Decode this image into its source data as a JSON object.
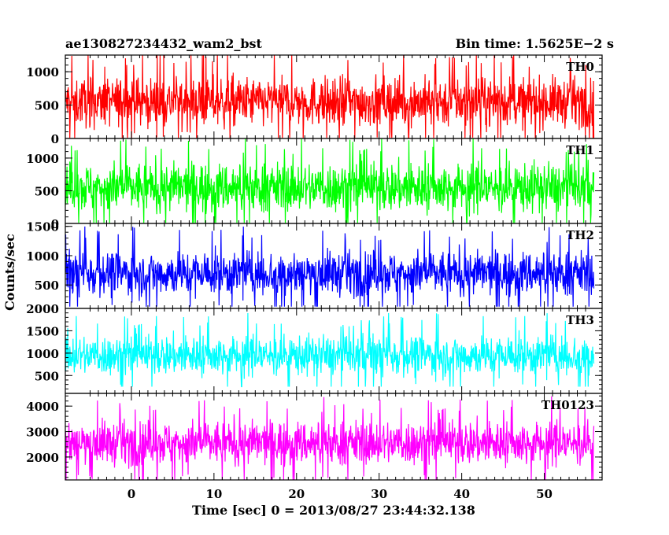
{
  "chart_data": {
    "type": "line",
    "title": "ae130827234432_wam2_bst",
    "subtitle": "Bin time: 1.5625E−2 s",
    "xlabel": "Time [sec] 0 = 2013/08/27 23:44:32.138",
    "ylabel": "Counts/sec",
    "xlim": [
      -8,
      57
    ],
    "data_xrange": [
      -8,
      56
    ],
    "x_ticks": [
      0,
      10,
      20,
      30,
      40,
      50
    ],
    "grid": false,
    "series": [
      {
        "name": "TH0",
        "color": "#ff0000",
        "ylim": [
          0,
          1250
        ],
        "y_ticks": [
          0,
          500,
          1000
        ],
        "baseline": 550,
        "noise": 260,
        "min": 10,
        "max": 1250
      },
      {
        "name": "TH1",
        "color": "#00ff00",
        "ylim": [
          0,
          1300
        ],
        "y_ticks": [
          0,
          500,
          1000
        ],
        "baseline": 550,
        "noise": 270,
        "min": 10,
        "max": 1300
      },
      {
        "name": "TH2",
        "color": "#0000ff",
        "ylim": [
          100,
          1550
        ],
        "y_ticks": [
          500,
          1000,
          1500
        ],
        "baseline": 700,
        "noise": 270,
        "min": 130,
        "max": 1550
      },
      {
        "name": "TH3",
        "color": "#00ffff",
        "ylim": [
          100,
          2000
        ],
        "y_ticks": [
          500,
          1000,
          1500,
          2000
        ],
        "baseline": 950,
        "noise": 320,
        "min": 250,
        "max": 1950
      },
      {
        "name": "TH0123",
        "color": "#ff00ff",
        "ylim": [
          1100,
          4500
        ],
        "y_ticks": [
          2000,
          3000,
          4000
        ],
        "baseline": 2550,
        "noise": 620,
        "min": 1100,
        "max": 4400
      }
    ]
  }
}
